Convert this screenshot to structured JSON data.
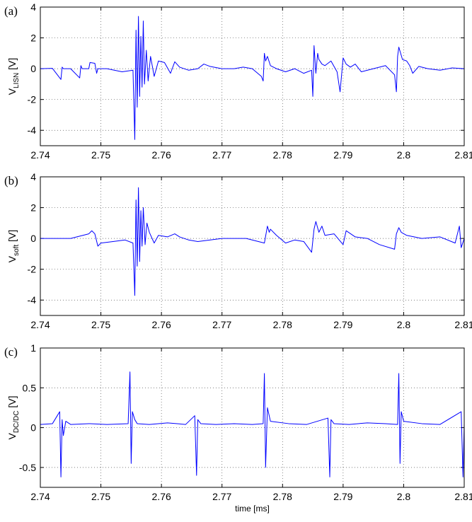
{
  "chart_data": [
    {
      "type": "line",
      "panel_label": "(a)",
      "ylabel_main": "V",
      "ylabel_sub": "LISN",
      "ylabel_unit": " [V]",
      "xlim": [
        2.74,
        2.81
      ],
      "ylim": [
        -5,
        4
      ],
      "xticks": [
        "2.74",
        "2.75",
        "2.76",
        "2.77",
        "2.78",
        "2.79",
        "2.8",
        "2.81"
      ],
      "yticks": [
        "-4",
        "-2",
        "0",
        "2",
        "4"
      ],
      "grid": true,
      "color": "#0000ff",
      "series": [
        {
          "x": [
            2.74,
            2.742,
            2.7434,
            2.7436,
            2.7438,
            2.745,
            2.7465,
            2.7467,
            2.7469,
            2.748,
            2.7482,
            2.749,
            2.7493,
            2.7495,
            2.751,
            2.7535,
            2.7553,
            2.7556,
            2.7558,
            2.756,
            2.7562,
            2.7564,
            2.7566,
            2.7568,
            2.757,
            2.7572,
            2.7575,
            2.7578,
            2.7582,
            2.7588,
            2.7595,
            2.7605,
            2.7615,
            2.7622,
            2.763,
            2.7645,
            2.766,
            2.767,
            2.768,
            2.77,
            2.772,
            2.7735,
            2.775,
            2.7765,
            2.7768,
            2.777,
            2.7772,
            2.7775,
            2.778,
            2.779,
            2.7805,
            2.782,
            2.7835,
            2.7848,
            2.785,
            2.7852,
            2.7855,
            2.7858,
            2.786,
            2.7865,
            2.787,
            2.788,
            2.789,
            2.7895,
            2.79,
            2.7905,
            2.7912,
            2.792,
            2.793,
            2.795,
            2.797,
            2.7985,
            2.7988,
            2.799,
            2.7992,
            2.7995,
            2.7998,
            2.8005,
            2.801,
            2.8015,
            2.8025,
            2.804,
            2.806,
            2.808,
            2.81
          ],
          "y": [
            0,
            0.02,
            -0.7,
            0.1,
            0,
            0,
            -0.6,
            0.2,
            0,
            0,
            0.4,
            0.35,
            -0.3,
            0,
            0,
            -0.2,
            -0.1,
            -4.6,
            2.5,
            -2.5,
            3.4,
            -1.8,
            2.1,
            -1.2,
            3.1,
            -1.0,
            1.2,
            -0.8,
            0.8,
            -0.5,
            0.5,
            0.4,
            -0.3,
            0.45,
            0.1,
            -0.1,
            0,
            0.3,
            0.15,
            0,
            0,
            0.1,
            0,
            -0.5,
            -0.8,
            1.0,
            0.5,
            0.8,
            0.2,
            0,
            -0.2,
            0,
            -0.3,
            -0.1,
            -1.8,
            1.5,
            -0.3,
            1.0,
            0.6,
            0.3,
            0.2,
            0.5,
            -0.2,
            -1.5,
            0.7,
            0.3,
            0.1,
            0.3,
            -0.2,
            0,
            0.2,
            -0.4,
            -1.5,
            0.8,
            1.4,
            1.0,
            0.6,
            0.5,
            0.2,
            -0.3,
            0.15,
            0,
            -0.1,
            0.05,
            0
          ]
        }
      ]
    },
    {
      "type": "line",
      "panel_label": "(b)",
      "ylabel_main": "V",
      "ylabel_sub": "soft",
      "ylabel_unit": " [V]",
      "xlim": [
        2.74,
        2.81
      ],
      "ylim": [
        -5,
        4
      ],
      "xticks": [
        "2.74",
        "2.75",
        "2.76",
        "2.77",
        "2.78",
        "2.79",
        "2.8",
        "2.81"
      ],
      "yticks": [
        "-4",
        "-2",
        "0",
        "2",
        "4"
      ],
      "grid": true,
      "color": "#0000ff",
      "series": [
        {
          "x": [
            2.74,
            2.745,
            2.748,
            2.7485,
            2.749,
            2.7495,
            2.75,
            2.752,
            2.754,
            2.7553,
            2.7556,
            2.7558,
            2.756,
            2.7562,
            2.7564,
            2.7566,
            2.7568,
            2.757,
            2.7573,
            2.7576,
            2.758,
            2.7588,
            2.7595,
            2.761,
            2.7622,
            2.763,
            2.7645,
            2.766,
            2.77,
            2.774,
            2.777,
            2.7775,
            2.7778,
            2.778,
            2.779,
            2.7805,
            2.782,
            2.7835,
            2.7848,
            2.7852,
            2.7855,
            2.786,
            2.7865,
            2.787,
            2.7885,
            2.79,
            2.7905,
            2.792,
            2.794,
            2.796,
            2.7985,
            2.7988,
            2.7992,
            2.7996,
            2.8005,
            2.803,
            2.806,
            2.8085,
            2.8092,
            2.8095,
            2.81
          ],
          "y": [
            0,
            0,
            0.3,
            0.5,
            0.3,
            -0.5,
            -0.3,
            -0.2,
            -0.1,
            -0.3,
            -3.7,
            2.5,
            -1.8,
            3.3,
            -1.5,
            1.8,
            -0.5,
            2.0,
            -0.4,
            1.0,
            0.4,
            -0.3,
            0.2,
            0.1,
            0.3,
            0.1,
            -0.1,
            -0.2,
            0,
            0,
            -0.3,
            0.8,
            0.4,
            0.6,
            0.2,
            -0.3,
            -0.1,
            -0.2,
            -0.9,
            0.6,
            1.1,
            0.4,
            0.8,
            0.2,
            0.3,
            -0.4,
            0.5,
            0.1,
            0,
            -0.4,
            -0.7,
            0.3,
            0.7,
            0.4,
            0.2,
            0,
            0.1,
            -0.3,
            0.8,
            -0.6,
            0
          ]
        }
      ]
    },
    {
      "type": "line",
      "panel_label": "(c)",
      "ylabel_main": "V",
      "ylabel_sub": "DC/DC",
      "ylabel_unit": " [V]",
      "xlabel": "time [ms]",
      "xlim": [
        2.74,
        2.81
      ],
      "ylim": [
        -0.75,
        1
      ],
      "xticks": [
        "2.74",
        "2.75",
        "2.76",
        "2.77",
        "2.78",
        "2.79",
        "2.8",
        "2.81"
      ],
      "yticks": [
        "-0.5",
        "0",
        "0.5",
        "1"
      ],
      "grid": true,
      "color": "#0000ff",
      "series": [
        {
          "x": [
            2.74,
            2.742,
            2.7432,
            2.7434,
            2.7436,
            2.7438,
            2.7442,
            2.745,
            2.748,
            2.751,
            2.7545,
            2.7548,
            2.755,
            2.7552,
            2.7556,
            2.756,
            2.758,
            2.761,
            2.764,
            2.7655,
            2.7658,
            2.766,
            2.7665,
            2.769,
            2.772,
            2.775,
            2.7768,
            2.777,
            2.7772,
            2.7775,
            2.778,
            2.781,
            2.784,
            2.7875,
            2.7878,
            2.788,
            2.7885,
            2.791,
            2.794,
            2.797,
            2.799,
            2.7992,
            2.7994,
            2.7996,
            2.8,
            2.803,
            2.806,
            2.8095,
            2.8098,
            2.81
          ],
          "y": [
            0.04,
            0.05,
            0.2,
            -0.62,
            0.1,
            -0.1,
            0.08,
            0.04,
            0.05,
            0.04,
            0.05,
            0.7,
            -0.45,
            0.2,
            0.1,
            0.05,
            0.04,
            0.06,
            0.04,
            0.15,
            -0.6,
            0.1,
            0.05,
            0.04,
            0.05,
            0.04,
            0.05,
            0.68,
            -0.5,
            0.25,
            0.08,
            0.05,
            0.04,
            0.12,
            -0.62,
            0.1,
            0.05,
            0.04,
            0.06,
            0.05,
            0.04,
            0.68,
            -0.45,
            0.2,
            0.08,
            0.05,
            0.04,
            0.2,
            -0.62,
            0.05
          ]
        }
      ]
    }
  ]
}
